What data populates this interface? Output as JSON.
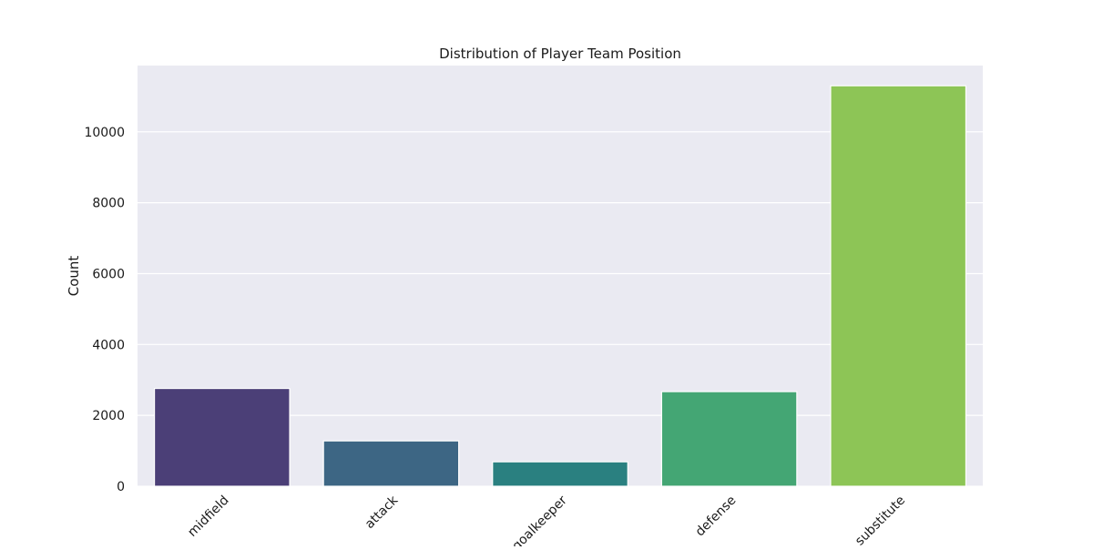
{
  "chart_data": {
    "type": "bar",
    "title": "Distribution of Player Team Position",
    "xlabel": "",
    "ylabel": "Count",
    "categories": [
      "midfield",
      "attack",
      "goalkeeper",
      "defense",
      "substitute"
    ],
    "values": [
      2760,
      1280,
      690,
      2670,
      11300
    ],
    "colors": [
      "#4b3f77",
      "#3d6684",
      "#2a8080",
      "#44a674",
      "#8dc556"
    ],
    "ylim": [
      0,
      11870
    ],
    "yticks": [
      0,
      2000,
      4000,
      6000,
      8000,
      10000
    ],
    "grid": true,
    "legend": "none",
    "axes_background": "#eaeaf2",
    "grid_color": "#ffffff"
  }
}
